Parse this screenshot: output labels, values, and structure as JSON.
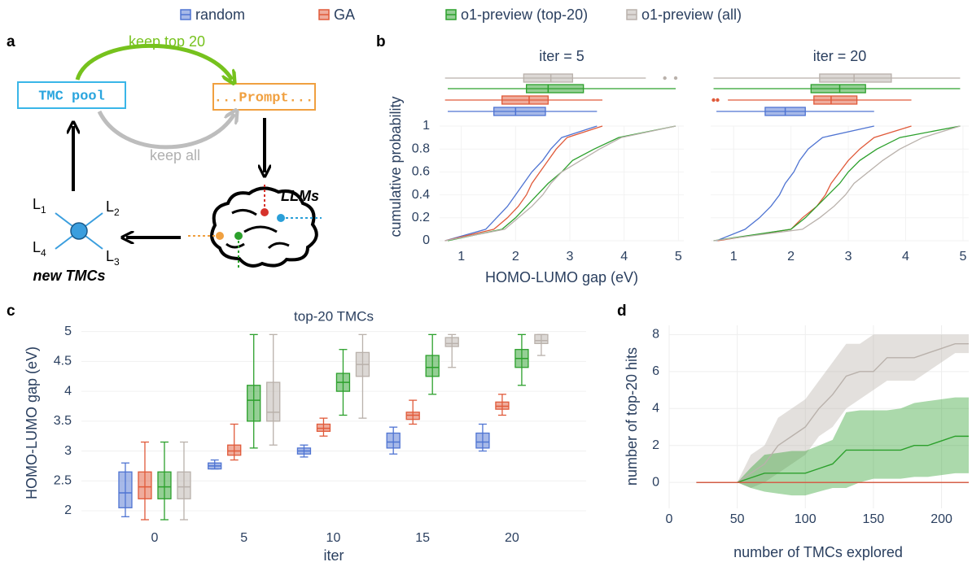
{
  "diagram": {
    "panel": "a",
    "pool": "TMC pool",
    "prompt": "...Prompt...",
    "keep_top": "keep top 20",
    "keep_all": "keep all",
    "llms": "LLMs",
    "new": "new TMCs",
    "ligands": [
      {
        "text": "L",
        "sub": "1"
      },
      {
        "text": "L",
        "sub": "2"
      },
      {
        "text": "L",
        "sub": "3"
      },
      {
        "text": "L",
        "sub": "4"
      }
    ]
  },
  "chart_data": [
    {
      "type": "ecdf",
      "panel": "b",
      "ylabel": "cumulative probability",
      "xlabel": "HOMO-LUMO gap (eV)",
      "xlim": [
        0.6,
        5.1
      ],
      "xticks": [
        1,
        2,
        3,
        4,
        5
      ],
      "ylim": [
        0,
        1
      ],
      "yticks": [
        0,
        0.2,
        0.4,
        0.6,
        0.8,
        1
      ],
      "subplots": [
        {
          "title": "iter = 5",
          "series": [
            {
              "name": "random",
              "color": "#4f74d2",
              "x": [
                0.7,
                1.45,
                1.65,
                1.85,
                2.0,
                2.15,
                2.3,
                2.5,
                2.65,
                2.85,
                3.5
              ],
              "values": [
                0,
                0.1,
                0.2,
                0.3,
                0.4,
                0.5,
                0.6,
                0.7,
                0.8,
                0.9,
                1
              ],
              "box": {
                "min": 0.75,
                "q1": 1.6,
                "median": 2.0,
                "q3": 2.55,
                "max": 3.5,
                "outliers": []
              }
            },
            {
              "name": "GA",
              "color": "#e05a3a",
              "x": [
                0.7,
                1.6,
                1.85,
                2.05,
                2.2,
                2.3,
                2.45,
                2.6,
                2.75,
                2.95,
                3.6
              ],
              "values": [
                0,
                0.1,
                0.2,
                0.3,
                0.4,
                0.5,
                0.6,
                0.7,
                0.8,
                0.9,
                1
              ],
              "box": {
                "min": 0.7,
                "q1": 1.75,
                "median": 2.25,
                "q3": 2.6,
                "max": 3.6,
                "outliers": []
              }
            },
            {
              "name": "o1-preview (top-20)",
              "color": "#2ca02c",
              "x": [
                0.75,
                1.75,
                2.0,
                2.2,
                2.4,
                2.6,
                2.85,
                3.05,
                3.45,
                3.9,
                4.95
              ],
              "values": [
                0,
                0.1,
                0.2,
                0.3,
                0.4,
                0.5,
                0.6,
                0.7,
                0.8,
                0.9,
                1
              ],
              "box": {
                "min": 0.75,
                "q1": 2.2,
                "median": 2.6,
                "q3": 3.25,
                "max": 4.95,
                "outliers": []
              }
            },
            {
              "name": "o1-preview (all)",
              "color": "#b9b1ab",
              "x": [
                0.7,
                1.8,
                2.05,
                2.3,
                2.5,
                2.65,
                2.85,
                3.2,
                3.55,
                3.95,
                4.95
              ],
              "values": [
                0,
                0.1,
                0.2,
                0.3,
                0.4,
                0.5,
                0.6,
                0.7,
                0.8,
                0.9,
                1
              ],
              "box": {
                "min": 0.7,
                "q1": 2.15,
                "median": 2.65,
                "q3": 3.05,
                "max": 4.4,
                "outliers": [
                  4.75,
                  4.95
                ]
              }
            }
          ]
        },
        {
          "title": "iter = 20",
          "series": [
            {
              "name": "random",
              "color": "#4f74d2",
              "x": [
                0.7,
                1.2,
                1.45,
                1.65,
                1.8,
                1.9,
                2.05,
                2.15,
                2.3,
                2.55,
                3.45
              ],
              "values": [
                0,
                0.1,
                0.2,
                0.3,
                0.4,
                0.5,
                0.6,
                0.7,
                0.8,
                0.9,
                1
              ],
              "box": {
                "min": 0.7,
                "q1": 1.55,
                "median": 1.9,
                "q3": 2.25,
                "max": 3.45,
                "outliers": []
              }
            },
            {
              "name": "GA",
              "color": "#e05a3a",
              "x": [
                0.72,
                2.0,
                2.2,
                2.45,
                2.6,
                2.7,
                2.85,
                3.0,
                3.2,
                3.45,
                4.1
              ],
              "values": [
                0,
                0.1,
                0.2,
                0.3,
                0.4,
                0.5,
                0.6,
                0.7,
                0.8,
                0.9,
                1
              ],
              "box": {
                "min": 0.9,
                "q1": 2.4,
                "median": 2.7,
                "q3": 3.15,
                "max": 4.1,
                "outliers": [
                  0.65,
                  0.72
                ]
              }
            },
            {
              "name": "o1-preview (top-20)",
              "color": "#2ca02c",
              "x": [
                0.65,
                2.0,
                2.25,
                2.45,
                2.65,
                2.85,
                3.0,
                3.2,
                3.5,
                3.9,
                4.95
              ],
              "values": [
                0,
                0.1,
                0.2,
                0.3,
                0.4,
                0.5,
                0.6,
                0.7,
                0.8,
                0.9,
                1
              ],
              "box": {
                "min": 0.65,
                "q1": 2.35,
                "median": 2.85,
                "q3": 3.3,
                "max": 4.95,
                "outliers": []
              }
            },
            {
              "name": "o1-preview (all)",
              "color": "#b9b1ab",
              "x": [
                0.65,
                2.2,
                2.5,
                2.75,
                2.95,
                3.1,
                3.35,
                3.6,
                3.9,
                4.3,
                4.95
              ],
              "values": [
                0,
                0.1,
                0.2,
                0.3,
                0.4,
                0.5,
                0.6,
                0.7,
                0.8,
                0.9,
                1
              ],
              "box": {
                "min": 0.65,
                "q1": 2.5,
                "median": 3.1,
                "q3": 3.75,
                "max": 4.95,
                "outliers": []
              }
            }
          ]
        }
      ]
    },
    {
      "type": "box",
      "panel": "c",
      "title": "top-20 TMCs",
      "ylabel": "HOMO-LUMO gap (eV)",
      "xlabel": "iter",
      "categories": [
        "0",
        "5",
        "10",
        "15",
        "20"
      ],
      "ylim": [
        1.85,
        5.05
      ],
      "yticks": [
        2,
        2.5,
        3,
        3.5,
        4,
        4.5,
        5
      ],
      "series": [
        {
          "name": "random",
          "color": "#4f74d2",
          "min": [
            1.9,
            2.7,
            2.9,
            2.95,
            3.0
          ],
          "q1": [
            2.05,
            2.7,
            2.95,
            3.05,
            3.05
          ],
          "median": [
            2.3,
            2.75,
            3.0,
            3.15,
            3.15
          ],
          "q3": [
            2.65,
            2.8,
            3.05,
            3.3,
            3.3
          ],
          "max": [
            2.8,
            2.85,
            3.1,
            3.4,
            3.45
          ]
        },
        {
          "name": "GA",
          "color": "#e05a3a",
          "min": [
            1.85,
            2.85,
            3.25,
            3.45,
            3.6
          ],
          "q1": [
            2.2,
            2.93,
            3.33,
            3.53,
            3.7
          ],
          "median": [
            2.4,
            3.0,
            3.38,
            3.6,
            3.75
          ],
          "q3": [
            2.65,
            3.1,
            3.45,
            3.65,
            3.82
          ],
          "max": [
            3.15,
            3.45,
            3.55,
            3.85,
            3.95
          ]
        },
        {
          "name": "o1-preview (top-20)",
          "color": "#2ca02c",
          "min": [
            1.85,
            3.05,
            3.6,
            3.95,
            4.1
          ],
          "q1": [
            2.2,
            3.5,
            4.0,
            4.25,
            4.4
          ],
          "median": [
            2.4,
            3.85,
            4.15,
            4.4,
            4.55
          ],
          "q3": [
            2.65,
            4.1,
            4.3,
            4.6,
            4.7
          ],
          "max": [
            3.15,
            4.95,
            4.7,
            4.95,
            4.95
          ]
        },
        {
          "name": "o1-preview (all)",
          "color": "#b9b1ab",
          "min": [
            1.85,
            3.1,
            3.55,
            4.4,
            4.6
          ],
          "q1": [
            2.2,
            3.5,
            4.25,
            4.75,
            4.8
          ],
          "median": [
            2.4,
            3.65,
            4.45,
            4.8,
            4.85
          ],
          "q3": [
            2.65,
            4.15,
            4.65,
            4.9,
            4.95
          ],
          "max": [
            3.15,
            4.95,
            4.95,
            4.95,
            4.95
          ]
        }
      ]
    },
    {
      "type": "band",
      "panel": "d",
      "ylabel": "number of top-20 hits",
      "xlabel": "number of TMCs explored",
      "xlim": [
        0,
        220
      ],
      "xticks": [
        0,
        50,
        100,
        150,
        200
      ],
      "ylim": [
        -1.4,
        8.5
      ],
      "yticks": [
        0,
        2,
        4,
        6,
        8
      ],
      "x": [
        20,
        40,
        50,
        60,
        70,
        80,
        90,
        100,
        110,
        120,
        130,
        140,
        150,
        160,
        170,
        180,
        190,
        200,
        210,
        220
      ],
      "series": [
        {
          "name": "o1-preview (all)",
          "color": "#b9b1ab",
          "values": [
            0,
            0,
            0,
            0.5,
            1,
            2,
            2.5,
            3,
            4,
            4.75,
            5.75,
            6,
            6,
            6.75,
            6.75,
            6.75,
            7,
            7.25,
            7.5,
            7.5
          ],
          "lower": [
            0,
            0,
            0,
            -0.3,
            0,
            0.5,
            1,
            1.5,
            2.5,
            3,
            4,
            4.5,
            5,
            5.5,
            5.5,
            5.5,
            6,
            6.5,
            7,
            7
          ],
          "upper": [
            0,
            0,
            0,
            1.5,
            2,
            3.5,
            4,
            4.5,
            5.5,
            6.5,
            7.5,
            7.5,
            8,
            8,
            8,
            8,
            8,
            8,
            8,
            8
          ]
        },
        {
          "name": "o1-preview (top-20)",
          "color": "#2ca02c",
          "values": [
            0,
            0,
            0,
            0.25,
            0.5,
            0.5,
            0.5,
            0.5,
            0.75,
            1,
            1.75,
            1.75,
            1.75,
            1.75,
            1.75,
            2,
            2,
            2.25,
            2.5,
            2.5
          ],
          "lower": [
            0,
            0,
            0,
            -0.3,
            -0.5,
            -0.6,
            -0.7,
            -0.7,
            -0.5,
            -0.3,
            -0.3,
            0,
            0.2,
            0.2,
            0.2,
            0.3,
            0.3,
            0.4,
            0.5,
            0.5
          ],
          "upper": [
            0,
            0,
            0,
            0.8,
            1.5,
            1.6,
            1.7,
            1.7,
            2,
            2.3,
            3.8,
            3.9,
            3.9,
            3.9,
            4,
            4.3,
            4.4,
            4.5,
            4.6,
            4.6
          ]
        },
        {
          "name": "random",
          "color": "#4f74d2",
          "values": [
            0,
            0,
            0,
            0,
            0,
            0,
            0,
            0,
            0,
            0,
            0,
            0,
            0,
            0,
            0,
            0,
            0,
            0,
            0,
            0
          ]
        },
        {
          "name": "GA",
          "color": "#e05a3a",
          "values": [
            0,
            0,
            0,
            0,
            0,
            0,
            0,
            0,
            0,
            0,
            0,
            0,
            0,
            0,
            0,
            0,
            0,
            0,
            0,
            0
          ]
        }
      ]
    }
  ]
}
